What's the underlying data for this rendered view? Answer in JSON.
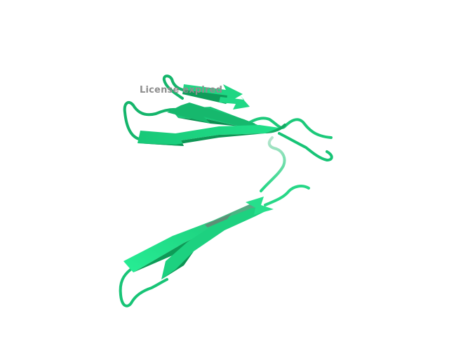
{
  "watermark": {
    "text": "License expired"
  },
  "colors": {
    "background": "#ffffff",
    "ribbon_main": "#1fdc84",
    "ribbon_dark": "#12a862",
    "ribbon_light": "#6ff0b6",
    "label": "#8e8e8e"
  }
}
